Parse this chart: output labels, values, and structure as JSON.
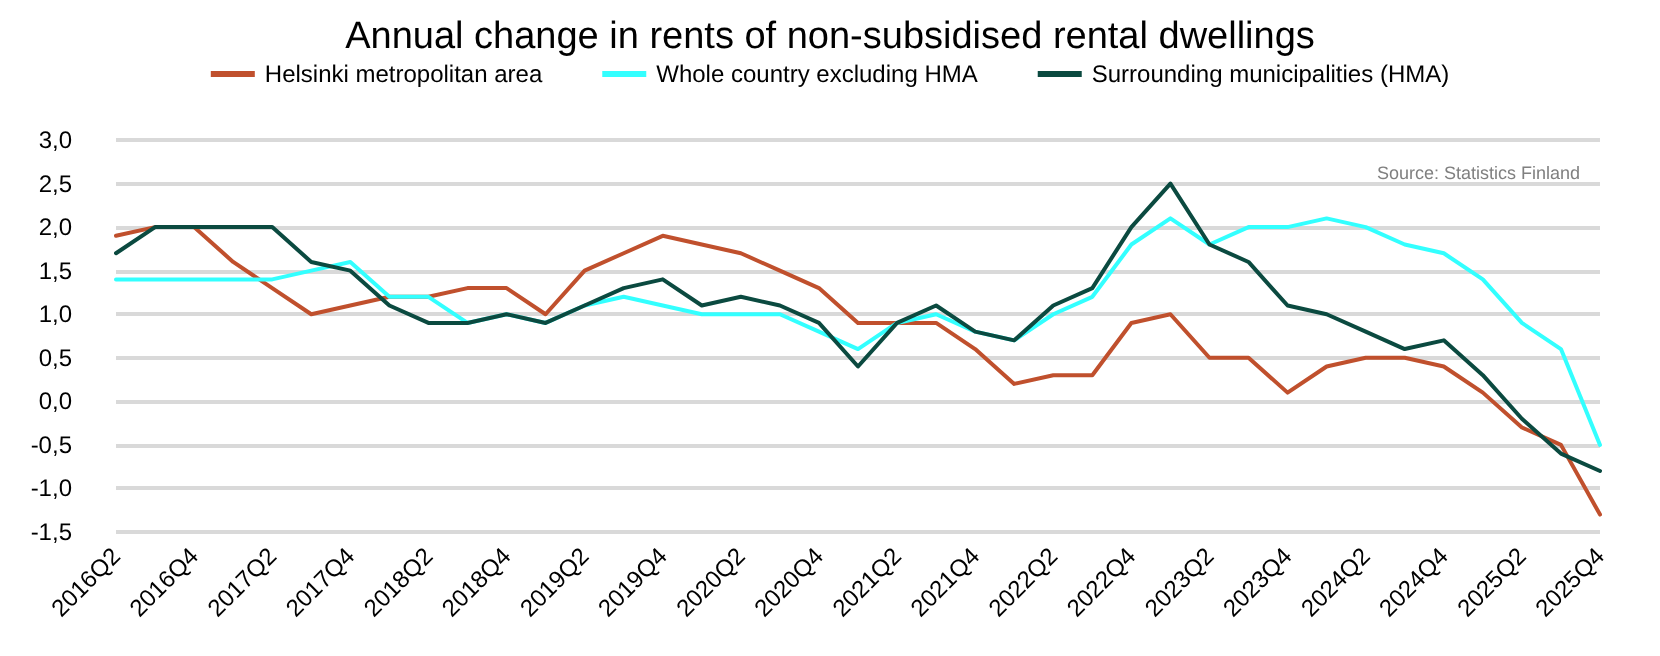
{
  "chart_data": {
    "type": "line",
    "title": "Annual change in rents of non-subsidised rental dwellings",
    "categories": [
      "2016Q2",
      null,
      "2016Q4",
      null,
      "2017Q2",
      null,
      "2017Q4",
      null,
      "2018Q2",
      null,
      "2018Q4",
      null,
      "2019Q2",
      null,
      "2019Q4",
      null,
      "2020Q2",
      null,
      "2020Q4",
      null,
      "2021Q2",
      null,
      "2021Q4",
      null,
      "2022Q2",
      null,
      "2022Q4",
      null,
      "2023Q2",
      null,
      "2023Q4",
      null,
      "2024Q2",
      null,
      "2024Q4",
      null,
      "2025Q2",
      null,
      "2025Q4"
    ],
    "series": [
      {
        "name": "Helsinki metropolitan area",
        "color": "#c0502d",
        "values": [
          1.9,
          2.0,
          2.0,
          1.6,
          1.3,
          1.0,
          1.1,
          1.2,
          1.2,
          1.3,
          1.3,
          1.0,
          1.5,
          1.7,
          1.9,
          1.8,
          1.7,
          1.5,
          1.3,
          0.9,
          0.9,
          0.9,
          0.6,
          0.2,
          0.3,
          0.3,
          0.9,
          1.0,
          0.5,
          0.5,
          0.1,
          0.4,
          0.5,
          0.5,
          0.4,
          0.1,
          -0.3,
          -0.5,
          -1.3
        ]
      },
      {
        "name": "Whole country excluding HMA",
        "color": "#33ffff",
        "values": [
          1.4,
          1.4,
          1.4,
          1.4,
          1.4,
          1.5,
          1.6,
          1.2,
          1.2,
          0.9,
          1.0,
          0.9,
          1.1,
          1.2,
          1.1,
          1.0,
          1.0,
          1.0,
          0.8,
          0.6,
          0.9,
          1.0,
          0.8,
          0.7,
          1.0,
          1.2,
          1.8,
          2.1,
          1.8,
          2.0,
          2.0,
          2.1,
          2.0,
          1.8,
          1.7,
          1.4,
          0.9,
          0.6,
          -0.5
        ]
      },
      {
        "name": "Surrounding municipalities (HMA)",
        "color": "#0b4a40",
        "values": [
          1.7,
          2.0,
          2.0,
          2.0,
          2.0,
          1.6,
          1.5,
          1.1,
          0.9,
          0.9,
          1.0,
          0.9,
          1.1,
          1.3,
          1.4,
          1.1,
          1.2,
          1.1,
          0.9,
          0.4,
          0.9,
          1.1,
          0.8,
          0.7,
          1.1,
          1.3,
          2.0,
          2.5,
          1.8,
          1.6,
          1.1,
          1.0,
          0.8,
          0.6,
          0.7,
          0.3,
          -0.2,
          -0.6,
          -0.8
        ]
      }
    ],
    "ylim": [
      -1.5,
      3.0
    ],
    "yticks": [
      {
        "value": -1.5,
        "label": "-1,5"
      },
      {
        "value": -1.0,
        "label": "-1,0"
      },
      {
        "value": -0.5,
        "label": "-0,5"
      },
      {
        "value": 0,
        "label": "0,0"
      },
      {
        "value": 0.5,
        "label": "0,5"
      },
      {
        "value": 1.0,
        "label": "1,0"
      },
      {
        "value": 1.5,
        "label": "1,5"
      },
      {
        "value": 2.0,
        "label": "2,0"
      },
      {
        "value": 2.5,
        "label": "2,5"
      },
      {
        "value": 3.0,
        "label": "3,0"
      }
    ],
    "annotations": [
      "Source: Statistics Finland"
    ],
    "grid": "y",
    "legend": "top",
    "marker": "none",
    "line_style": "solid"
  }
}
